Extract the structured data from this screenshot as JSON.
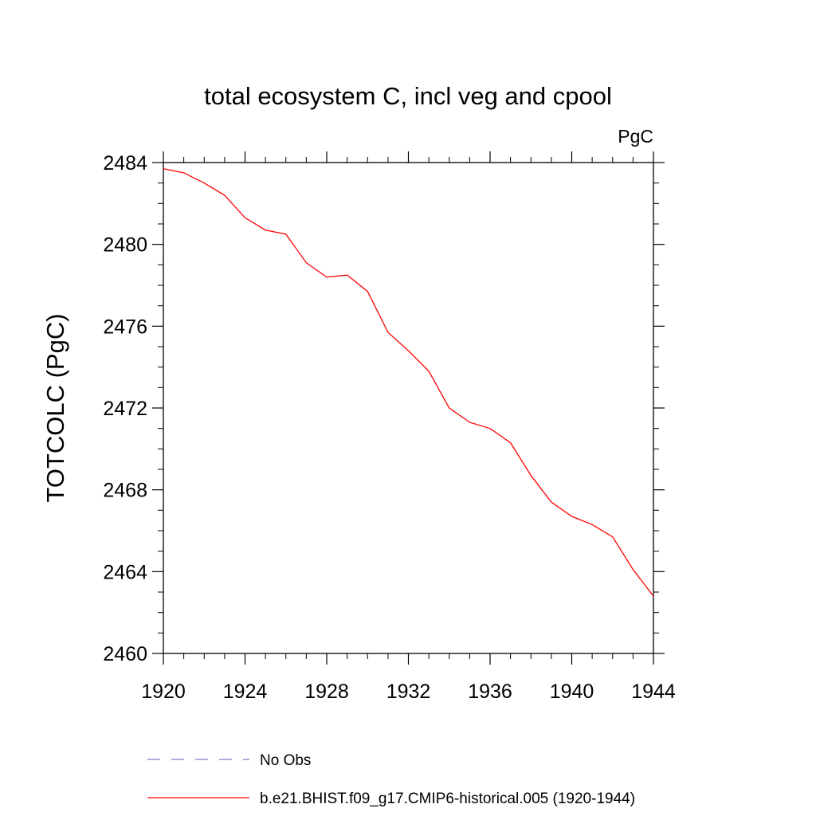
{
  "chart_data": {
    "type": "line",
    "title": "total ecosystem C, incl veg and cpool",
    "units": "PgC",
    "ylabel": "TOTCOLC  (PgC)",
    "xlabel": "",
    "xlim": [
      1920,
      1944
    ],
    "ylim": [
      2460,
      2484
    ],
    "xticks": [
      "1920",
      "1924",
      "1928",
      "1932",
      "1936",
      "1940",
      "1944"
    ],
    "yticks": [
      "2460",
      "2464",
      "2468",
      "2472",
      "2476",
      "2480",
      "2484"
    ],
    "grid": false,
    "legend_position": "bottom",
    "series": [
      {
        "name": "No Obs",
        "color": "#7b7bc8",
        "style": "dashed",
        "x": [],
        "y": []
      },
      {
        "name": "b.e21.BHIST.f09_g17.CMIP6-historical.005 (1920-1944)",
        "color": "#ff0000",
        "style": "solid",
        "x": [
          1920,
          1921,
          1922,
          1923,
          1924,
          1925,
          1926,
          1927,
          1928,
          1929,
          1930,
          1931,
          1932,
          1933,
          1934,
          1935,
          1936,
          1937,
          1938,
          1939,
          1940,
          1941,
          1942,
          1943,
          1944
        ],
        "y": [
          2483.7,
          2483.5,
          2483.0,
          2482.4,
          2481.3,
          2480.7,
          2480.5,
          2479.1,
          2478.4,
          2478.5,
          2477.7,
          2475.7,
          2474.8,
          2473.8,
          2472.0,
          2471.3,
          2471.0,
          2470.3,
          2468.7,
          2467.4,
          2466.7,
          2466.3,
          2465.7,
          2464.1,
          2462.8
        ]
      }
    ]
  }
}
